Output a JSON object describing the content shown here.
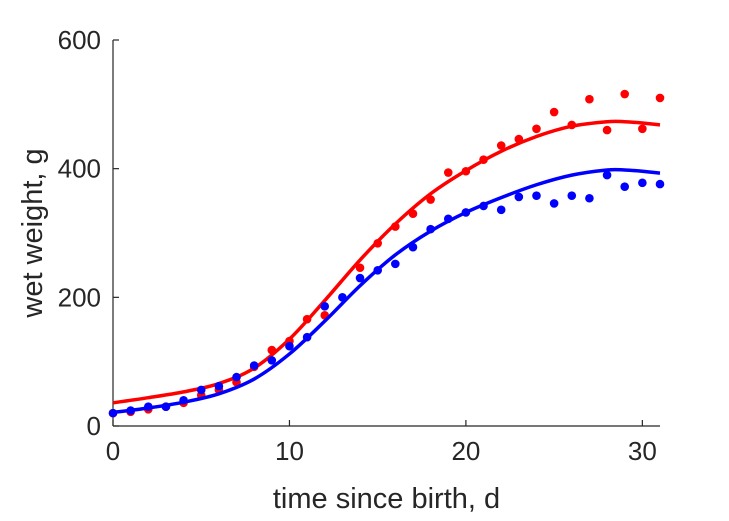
{
  "chart_data": {
    "type": "scatter",
    "xlabel": "time since birth, d",
    "ylabel": "wet weight, g",
    "xlim": [
      0,
      31
    ],
    "ylim": [
      0,
      600
    ],
    "xticks": [
      0,
      10,
      20,
      30
    ],
    "yticks": [
      0,
      200,
      400,
      600
    ],
    "grid": false,
    "legend": "none",
    "series": [
      {
        "color": "#ff0000",
        "points": [
          [
            0,
            20
          ],
          [
            1,
            22
          ],
          [
            2,
            26
          ],
          [
            3,
            30
          ],
          [
            4,
            36
          ],
          [
            5,
            48
          ],
          [
            6,
            56
          ],
          [
            7,
            68
          ],
          [
            8,
            92
          ],
          [
            9,
            118
          ],
          [
            10,
            132
          ],
          [
            11,
            166
          ],
          [
            12,
            172
          ],
          [
            14,
            246
          ],
          [
            15,
            284
          ],
          [
            16,
            310
          ],
          [
            17,
            330
          ],
          [
            18,
            352
          ],
          [
            19,
            394
          ],
          [
            20,
            396
          ],
          [
            21,
            414
          ],
          [
            22,
            436
          ],
          [
            23,
            446
          ],
          [
            24,
            462
          ],
          [
            25,
            488
          ],
          [
            26,
            468
          ],
          [
            27,
            508
          ],
          [
            28,
            460
          ],
          [
            29,
            516
          ],
          [
            30,
            462
          ],
          [
            31,
            510
          ]
        ],
        "fit": [
          [
            0,
            36
          ],
          [
            2,
            44
          ],
          [
            4,
            53
          ],
          [
            6,
            66
          ],
          [
            8,
            90
          ],
          [
            10,
            135
          ],
          [
            12,
            195
          ],
          [
            14,
            258
          ],
          [
            16,
            314
          ],
          [
            18,
            361
          ],
          [
            20,
            397
          ],
          [
            22,
            427
          ],
          [
            24,
            450
          ],
          [
            26,
            466
          ],
          [
            28,
            473
          ],
          [
            29,
            473
          ],
          [
            30,
            471
          ],
          [
            31,
            468
          ]
        ]
      },
      {
        "color": "#0000ff",
        "points": [
          [
            0,
            20
          ],
          [
            1,
            24
          ],
          [
            2,
            30
          ],
          [
            3,
            30
          ],
          [
            4,
            40
          ],
          [
            5,
            56
          ],
          [
            6,
            62
          ],
          [
            7,
            76
          ],
          [
            8,
            94
          ],
          [
            9,
            102
          ],
          [
            10,
            124
          ],
          [
            11,
            138
          ],
          [
            12,
            186
          ],
          [
            13,
            200
          ],
          [
            14,
            230
          ],
          [
            15,
            242
          ],
          [
            16,
            252
          ],
          [
            17,
            278
          ],
          [
            18,
            306
          ],
          [
            19,
            322
          ],
          [
            20,
            332
          ],
          [
            21,
            342
          ],
          [
            22,
            336
          ],
          [
            23,
            356
          ],
          [
            24,
            358
          ],
          [
            25,
            346
          ],
          [
            26,
            358
          ],
          [
            27,
            354
          ],
          [
            28,
            390
          ],
          [
            29,
            372
          ],
          [
            30,
            378
          ],
          [
            31,
            376
          ]
        ],
        "fit": [
          [
            0,
            21
          ],
          [
            2,
            28
          ],
          [
            4,
            37
          ],
          [
            6,
            50
          ],
          [
            8,
            73
          ],
          [
            10,
            112
          ],
          [
            12,
            163
          ],
          [
            14,
            218
          ],
          [
            16,
            266
          ],
          [
            18,
            303
          ],
          [
            20,
            332
          ],
          [
            22,
            355
          ],
          [
            24,
            375
          ],
          [
            26,
            390
          ],
          [
            28,
            398
          ],
          [
            29,
            398
          ],
          [
            30,
            396
          ],
          [
            31,
            393
          ]
        ]
      }
    ]
  }
}
